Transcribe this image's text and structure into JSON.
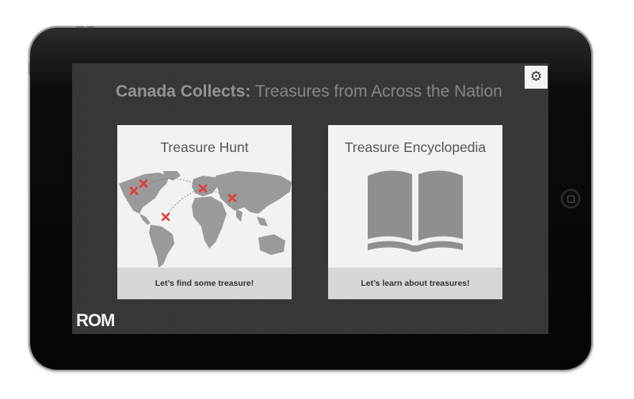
{
  "app": {
    "title_bold": "Canada Collects:",
    "title_rest": " Treasures from Across the Nation",
    "logo": "ROM"
  },
  "toolbar": {
    "settings_icon": "gear-icon",
    "settings_glyph": "⚙"
  },
  "cards": [
    {
      "title": "Treasure Hunt",
      "button_label": "Let’s find some treasure!",
      "icon": "world-map-icon",
      "marker_color": "#e53935"
    },
    {
      "title": "Treasure Encyclopedia",
      "button_label": "Let’s learn about treasures!",
      "icon": "open-book-icon"
    }
  ]
}
